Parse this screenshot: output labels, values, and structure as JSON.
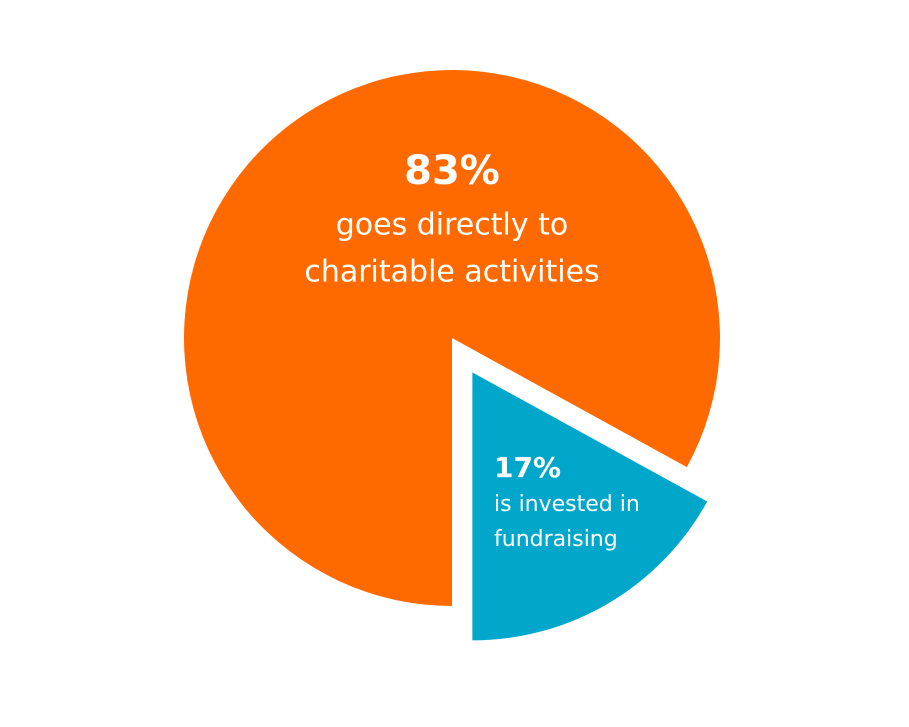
{
  "chart_data": {
    "type": "pie",
    "categories": [
      null,
      null
    ],
    "values": [
      83,
      17
    ],
    "value_labels": [
      "83%",
      "17%"
    ],
    "descriptions": [
      [
        "goes directly to",
        "charitable activities"
      ],
      [
        "is invested in",
        "fundraising"
      ]
    ],
    "colors": [
      "#ff6a00",
      "#00a7cb"
    ],
    "exploded": [
      false,
      true
    ]
  }
}
